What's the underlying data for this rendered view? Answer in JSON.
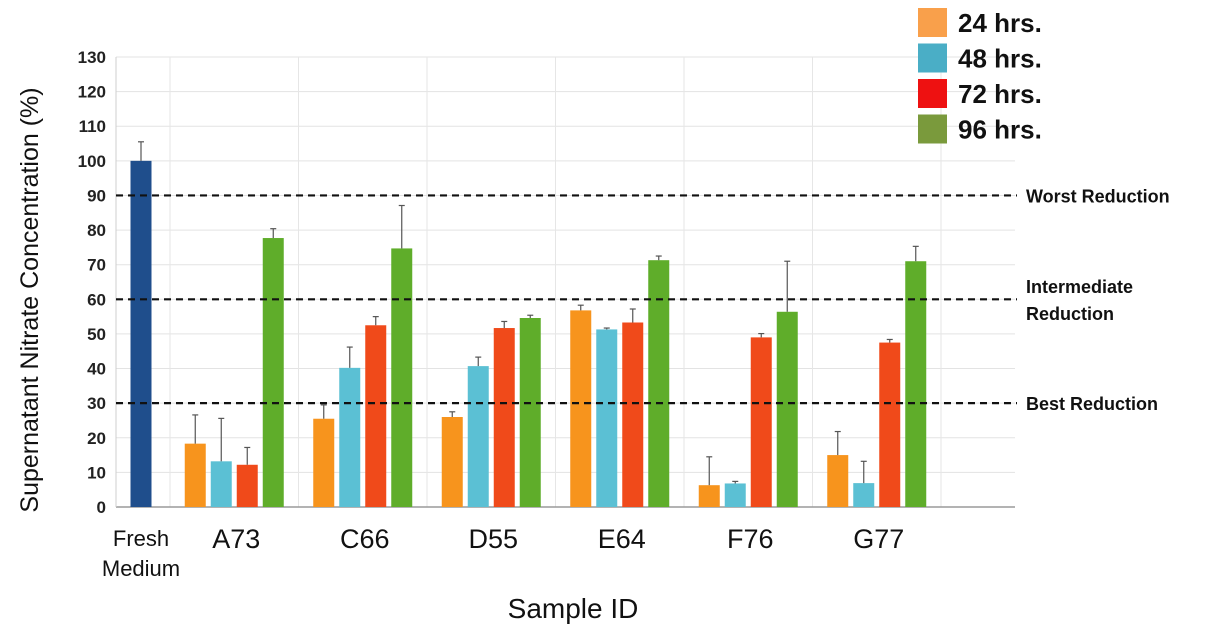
{
  "chart_data": {
    "type": "bar",
    "title": "",
    "xlabel": "Sample ID",
    "ylabel": "Supernatant Nitrate Concentration (%)",
    "ylim": [
      0,
      130
    ],
    "yticks": [
      0,
      10,
      20,
      30,
      40,
      50,
      60,
      70,
      80,
      90,
      100,
      110,
      120,
      130
    ],
    "grid": true,
    "legend_position": "top-right",
    "control": {
      "lines": [
        "Fresh",
        "Medium"
      ],
      "value": 100,
      "error": 5.5,
      "color": "#1f4e8c"
    },
    "categories": [
      "A73",
      "C66",
      "D55",
      "E64",
      "F76",
      "G77"
    ],
    "series": [
      {
        "name": "24 hrs.",
        "legend_color": "#f9a04b",
        "color": "#f7941d",
        "values": [
          18.3,
          25.5,
          26.0,
          56.8,
          6.3,
          15.0
        ],
        "errors": [
          8.3,
          4.0,
          1.5,
          1.5,
          8.2,
          6.8
        ]
      },
      {
        "name": "48 hrs.",
        "legend_color": "#4aaec6",
        "color": "#5bc0d4",
        "values": [
          13.2,
          40.2,
          40.7,
          51.3,
          6.8,
          6.9
        ],
        "errors": [
          12.4,
          6.0,
          2.6,
          0.4,
          0.6,
          6.3
        ]
      },
      {
        "name": "72 hrs.",
        "legend_color": "#ee1111",
        "color": "#f04a1a",
        "values": [
          12.2,
          52.5,
          51.7,
          53.3,
          49.0,
          47.5
        ],
        "errors": [
          5.0,
          2.5,
          1.9,
          3.9,
          1.1,
          0.9
        ]
      },
      {
        "name": "96 hrs.",
        "legend_color": "#7a9a3c",
        "color": "#5fad2a",
        "values": [
          77.7,
          74.7,
          54.6,
          71.3,
          56.4,
          71.0
        ],
        "errors": [
          2.7,
          12.4,
          0.8,
          1.2,
          14.6,
          4.3
        ]
      }
    ],
    "reference_lines": [
      {
        "value": 90,
        "lines": [
          "Worst Reduction"
        ]
      },
      {
        "value": 60,
        "lines": [
          "Intermediate",
          "Reduction"
        ]
      },
      {
        "value": 30,
        "lines": [
          "Best Reduction"
        ]
      }
    ]
  }
}
